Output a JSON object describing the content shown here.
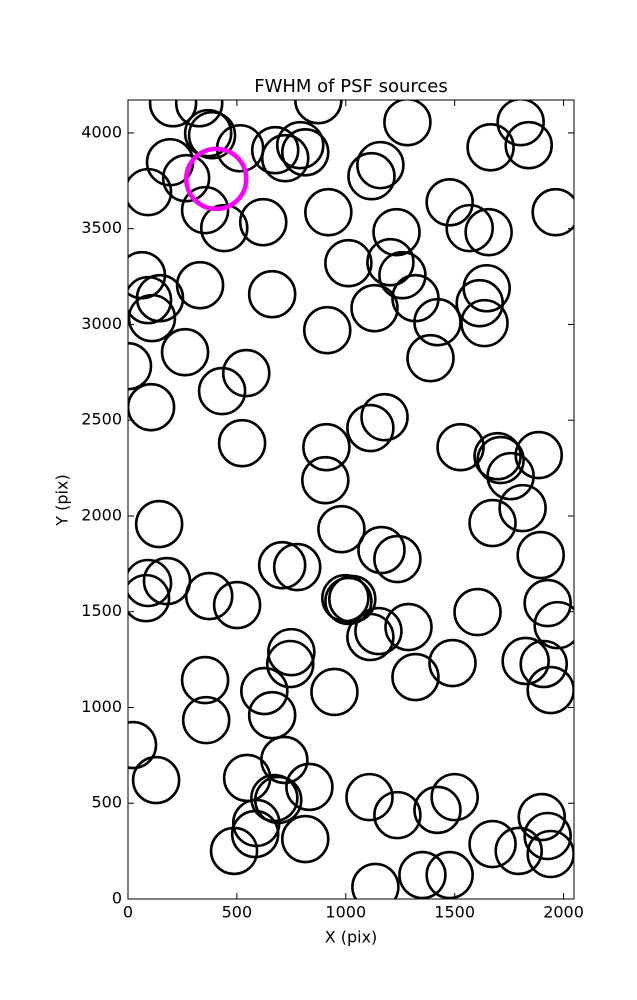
{
  "chart_data": {
    "type": "scatter",
    "title": "FWHM of PSF sources",
    "xlabel": "X (pix)",
    "ylabel": "Y (pix)",
    "xlim": [
      0,
      2048
    ],
    "ylim": [
      0,
      4172
    ],
    "xticks": [
      0,
      500,
      1000,
      1500,
      2000
    ],
    "yticks": [
      0,
      500,
      1000,
      1500,
      2000,
      2500,
      3000,
      3500,
      4000
    ],
    "grid": false,
    "series": [
      {
        "color": "#000000",
        "x": [
          207,
          327,
          874,
          368,
          386,
          515,
          676,
          722,
          791,
          814,
          1283,
          1159,
          1118,
          193,
          92,
          267,
          354,
          442,
          621,
          920,
          1233,
          1477,
          1569,
          1656,
          1665,
          1840,
          1803,
          1964,
          64,
          92,
          147,
          110,
          331,
          662,
          1012,
          1205,
          1260,
          1320,
          1132,
          915,
          1421,
          1647,
          1615,
          1637,
          1389,
          0,
          262,
          432,
          543,
          106,
          524,
          1113,
          1178,
          911,
          906,
          1527,
          1697,
          1711,
          1757,
          1886,
          1812,
          1674,
          1895,
          143,
          92,
          83,
          179,
          373,
          501,
          708,
          777,
          980,
          1164,
          1237,
          998,
          1012,
          1030,
          1113,
          1150,
          1288,
          1605,
          1927,
          1973,
          750,
          745,
          354,
          626,
          662,
          359,
          948,
          1320,
          1490,
          1826,
          1909,
          1941,
          23,
          129,
          547,
          718,
          833,
          672,
          690,
          589,
          584,
          487,
          814,
          1109,
          1237,
          1421,
          1500,
          1674,
          1794,
          1900,
          1927,
          1941,
          1352,
          1477,
          1136
        ],
        "values": [
          4155,
          4155,
          4171,
          3999,
          3988,
          3920,
          3910,
          3868,
          3936,
          3899,
          4056,
          3832,
          3774,
          3847,
          3691,
          3764,
          3597,
          3503,
          3534,
          3586,
          3482,
          3638,
          3503,
          3482,
          3925,
          3936,
          4056,
          3586,
          3257,
          3127,
          3137,
          3033,
          3205,
          3158,
          3320,
          3325,
          3257,
          3137,
          3085,
          2970,
          3012,
          3189,
          3111,
          3007,
          2824,
          2782,
          2855,
          2652,
          2746,
          2568,
          2380,
          2459,
          2516,
          2359,
          2187,
          2359,
          2312,
          2292,
          2208,
          2318,
          2041,
          1963,
          1796,
          1958,
          1650,
          1571,
          1660,
          1582,
          1535,
          1743,
          1733,
          1931,
          1822,
          1775,
          1571,
          1556,
          1566,
          1368,
          1399,
          1420,
          1498,
          1545,
          1430,
          1289,
          1227,
          1143,
          1086,
          960,
          934,
          1081,
          1159,
          1232,
          1243,
          1227,
          1091,
          804,
          621,
          632,
          726,
          585,
          527,
          517,
          397,
          339,
          251,
          313,
          532,
          438,
          465,
          532,
          287,
          251,
          428,
          329,
          235,
          125,
          125,
          63
        ]
      },
      {
        "color": "#ff00ff",
        "x": [
          405
        ],
        "values": [
          3760
        ]
      }
    ]
  }
}
